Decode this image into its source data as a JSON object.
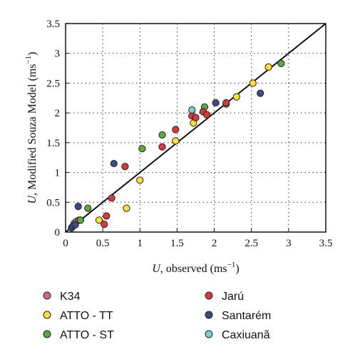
{
  "chart_data": {
    "type": "scatter",
    "xlabel": {
      "var": "U",
      "text": ", observed (ms",
      "sup": "−1",
      "close": ")"
    },
    "ylabel": {
      "var": "U",
      "text": ", Modified Souza Model (ms",
      "sup": "−1",
      "close": ")"
    },
    "xlim": [
      0,
      3.5
    ],
    "ylim": [
      0,
      3.5
    ],
    "xticks": [
      0,
      0.5,
      1,
      1.5,
      2,
      2.5,
      3,
      3.5
    ],
    "yticks": [
      0,
      0.5,
      1,
      1.5,
      2,
      2.5,
      3,
      3.5
    ],
    "xtick_labels": [
      "0",
      "0.5",
      "1",
      "1.5",
      "2",
      "2.5",
      "3",
      "3.5"
    ],
    "ytick_labels": [
      "0",
      "0.5",
      "1",
      "1.5",
      "2",
      "2.5",
      "3",
      "3.5"
    ],
    "grid": true,
    "reference_line": {
      "type": "1:1",
      "from": [
        0,
        0
      ],
      "to": [
        3.5,
        3.5
      ]
    },
    "legend_placement": "bottom",
    "series": [
      {
        "name": "K34",
        "color": "#cc6699",
        "x": [
          0.1,
          0.12,
          0.15,
          0.18,
          0.2
        ],
        "y": [
          0.1,
          0.15,
          0.18,
          0.2,
          0.2
        ]
      },
      {
        "name": "ATTO - TT",
        "color": "#ffe033",
        "x": [
          0.45,
          0.82,
          1.0,
          1.48,
          1.72,
          2.3,
          2.52,
          2.73
        ],
        "y": [
          0.2,
          0.4,
          0.87,
          1.53,
          1.83,
          2.27,
          2.5,
          2.77
        ]
      },
      {
        "name": "ATTO - ST",
        "color": "#5aab3c",
        "x": [
          0.2,
          0.3,
          1.03,
          1.3,
          1.87,
          2.16,
          2.9
        ],
        "y": [
          0.2,
          0.4,
          1.4,
          1.63,
          2.1,
          2.15,
          2.83
        ]
      },
      {
        "name": "Jarú",
        "color": "#d93838",
        "x": [
          0.52,
          0.55,
          0.62,
          0.8,
          1.3,
          1.48,
          1.7,
          1.75,
          1.85,
          1.9,
          2.16
        ],
        "y": [
          0.13,
          0.27,
          0.57,
          1.1,
          1.43,
          1.72,
          1.95,
          1.92,
          2.02,
          1.97,
          2.17
        ]
      },
      {
        "name": "Santarém",
        "color": "#3c4a8c",
        "x": [
          0.08,
          0.1,
          0.13,
          0.17,
          0.65,
          2.02,
          2.62
        ],
        "y": [
          0.07,
          0.1,
          0.12,
          0.43,
          1.15,
          2.17,
          2.33
        ]
      },
      {
        "name": "Caxiuanã",
        "color": "#7ccfd0",
        "x": [
          1.7
        ],
        "y": [
          2.05
        ]
      }
    ]
  }
}
